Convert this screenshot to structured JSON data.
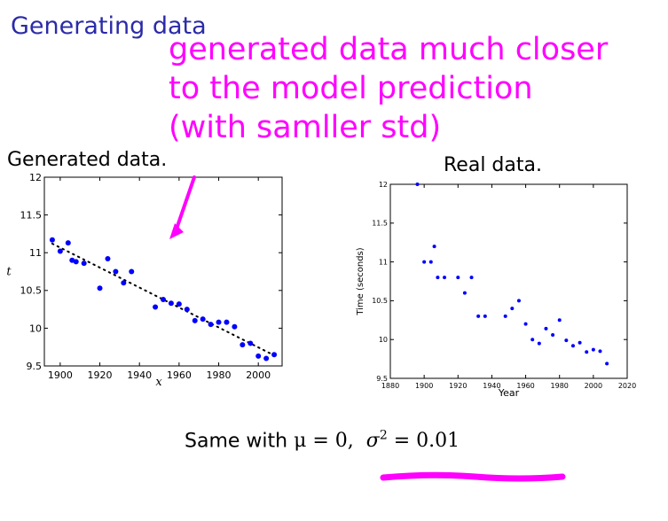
{
  "slide": {
    "title": "Generating data",
    "annotation_lines": [
      "generated data much closer",
      "to the model prediction",
      "(with samller std)"
    ],
    "annotation_color": "#ff00ff",
    "left_panel_label": "Generated data.",
    "right_panel_label": "Real data.",
    "formula_prefix": "Same with ",
    "formula_mu": "μ = 0,",
    "formula_sigma_symbol": "σ",
    "formula_sigma_exp": "2",
    "formula_sigma_value": " = 0.01"
  },
  "chart_data": [
    {
      "type": "scatter",
      "xlabel": "x",
      "ylabel": "t",
      "xlim": [
        1892,
        2012
      ],
      "ylim": [
        9.5,
        12
      ],
      "xticks": [
        1900,
        1920,
        1940,
        1960,
        1980,
        2000
      ],
      "yticks": [
        9.5,
        10,
        10.5,
        11,
        11.5,
        12
      ],
      "ytick_labels": [
        "9.5",
        "10",
        "10.5",
        "11",
        "11.5",
        "12"
      ],
      "marker_color": "#0000ff",
      "points": [
        [
          1896,
          11.17
        ],
        [
          1900,
          11.02
        ],
        [
          1904,
          11.13
        ],
        [
          1906,
          10.9
        ],
        [
          1908,
          10.88
        ],
        [
          1912,
          10.86
        ],
        [
          1920,
          10.53
        ],
        [
          1924,
          10.92
        ],
        [
          1928,
          10.75
        ],
        [
          1932,
          10.6
        ],
        [
          1936,
          10.75
        ],
        [
          1948,
          10.28
        ],
        [
          1952,
          10.38
        ],
        [
          1956,
          10.33
        ],
        [
          1960,
          10.32
        ],
        [
          1964,
          10.25
        ],
        [
          1968,
          10.1
        ],
        [
          1972,
          10.12
        ],
        [
          1976,
          10.05
        ],
        [
          1980,
          10.08
        ],
        [
          1984,
          10.08
        ],
        [
          1988,
          10.02
        ],
        [
          1992,
          9.78
        ],
        [
          1996,
          9.8
        ],
        [
          2000,
          9.63
        ],
        [
          2004,
          9.6
        ],
        [
          2008,
          9.65
        ]
      ],
      "model_line": [
        [
          1896,
          11.12
        ],
        [
          2008,
          9.64
        ]
      ]
    },
    {
      "type": "scatter",
      "xlabel": "Year",
      "ylabel": "Time (seconds)",
      "xlim": [
        1880,
        2020
      ],
      "ylim": [
        9.5,
        12
      ],
      "xticks": [
        1880,
        1900,
        1920,
        1940,
        1960,
        1980,
        2000,
        2020
      ],
      "yticks": [
        9.5,
        10,
        10.5,
        11,
        11.5,
        12
      ],
      "ytick_labels": [
        "9.5",
        "10",
        "10.5",
        "11",
        "11.5",
        "12"
      ],
      "marker_color": "#0000ff",
      "points": [
        [
          1896,
          12.0
        ],
        [
          1900,
          11.0
        ],
        [
          1904,
          11.0
        ],
        [
          1906,
          11.2
        ],
        [
          1908,
          10.8
        ],
        [
          1912,
          10.8
        ],
        [
          1920,
          10.8
        ],
        [
          1924,
          10.6
        ],
        [
          1928,
          10.8
        ],
        [
          1932,
          10.3
        ],
        [
          1936,
          10.3
        ],
        [
          1948,
          10.3
        ],
        [
          1952,
          10.4
        ],
        [
          1956,
          10.5
        ],
        [
          1960,
          10.2
        ],
        [
          1964,
          10.0
        ],
        [
          1968,
          9.95
        ],
        [
          1972,
          10.14
        ],
        [
          1976,
          10.06
        ],
        [
          1980,
          10.25
        ],
        [
          1984,
          9.99
        ],
        [
          1988,
          9.92
        ],
        [
          1992,
          9.96
        ],
        [
          1996,
          9.84
        ],
        [
          2000,
          9.87
        ],
        [
          2004,
          9.85
        ],
        [
          2008,
          9.69
        ]
      ]
    }
  ]
}
